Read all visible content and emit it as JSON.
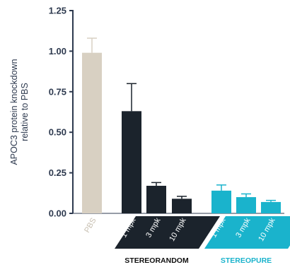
{
  "chart_data": {
    "type": "bar",
    "ylabel": "APOC3 protein knockdown relative to PBS",
    "ylabel_lines": [
      "APOC3 protein knockdown",
      "relative to PBS"
    ],
    "ylim": [
      0,
      1.25
    ],
    "yticks": [
      "0.00",
      "0.25",
      "0.50",
      "0.75",
      "1.00",
      "1.25"
    ],
    "grid": false,
    "categories": [
      "PBS",
      "1 mpk",
      "3 mpk",
      "10 mpk",
      "1 mpk",
      "3 mpk",
      "10 mpk"
    ],
    "values": [
      0.99,
      0.63,
      0.17,
      0.09,
      0.14,
      0.1,
      0.07
    ],
    "errors": [
      0.09,
      0.17,
      0.02,
      0.015,
      0.035,
      0.02,
      0.01
    ],
    "groups": [
      {
        "name": "STEREORANDOM",
        "color": "#1b232c",
        "members": [
          1,
          2,
          3
        ]
      },
      {
        "name": "STEREOPURE",
        "color": "#1ab3cc",
        "members": [
          4,
          5,
          6
        ]
      }
    ],
    "colors": {
      "pbs": "#d8d0c2",
      "pbs_label": "#c8c0b2",
      "stereorandom": "#1b232c",
      "stereopure": "#1ab3cc",
      "axis": "#2e3a4f"
    }
  }
}
